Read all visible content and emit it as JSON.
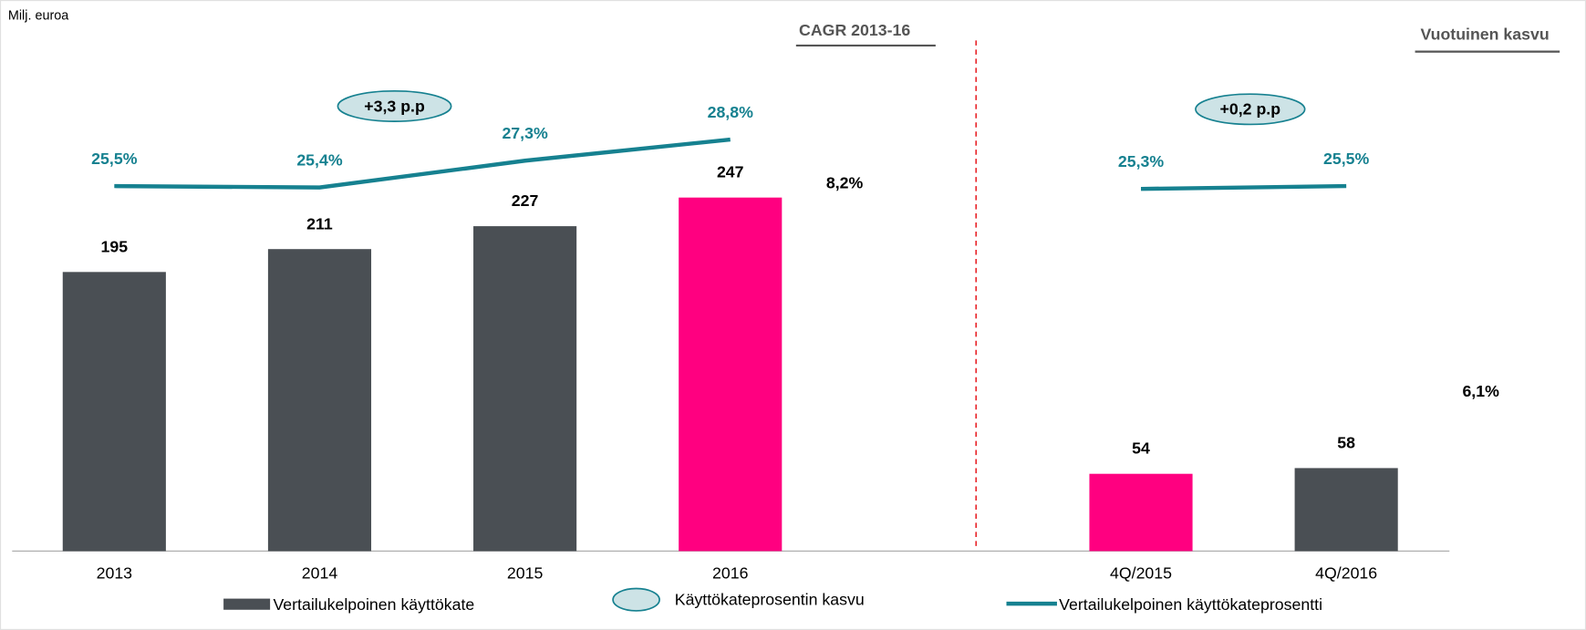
{
  "chart_data": {
    "type": "bar",
    "unit_label": "Milj. euroa",
    "categories": [
      "2013",
      "2014",
      "2015",
      "2016",
      null,
      "4Q/2015",
      "4Q/2016"
    ],
    "ylim": [
      0,
      385
    ],
    "y2lim": [
      -0.4,
      38.7
    ],
    "series": [
      {
        "name": "Vertailukelpoinen käyttökate",
        "type": "bar",
        "color": "#4a4f54",
        "colors": [
          "#4a4f54",
          "#4a4f54",
          "#4a4f54",
          "#ff0080",
          null,
          "#ff0080",
          "#4a4f54"
        ],
        "values": [
          195,
          211,
          227,
          247,
          null,
          54,
          58
        ]
      },
      {
        "name": "Vertailukelpoinen käyttökateprosentti",
        "type": "line",
        "axis": "y2",
        "color": "#168190",
        "values": [
          25.5,
          25.4,
          27.3,
          28.8,
          null,
          25.3,
          25.5
        ],
        "value_labels": [
          "25,5%",
          "25,4%",
          "27,3%",
          "28,8%",
          null,
          "25,3%",
          "25,5%"
        ]
      }
    ],
    "annotations": {
      "growth_legend": "Käyttökateprosentin kasvu",
      "growth_left": "+3,3 p.p",
      "growth_right": "+0,2 p.p",
      "cagr_title": "CAGR 2013-16",
      "cagr_value": "8,2%",
      "yoy_title": "Vuotuinen kasvu",
      "yoy_value": "6,1%"
    }
  }
}
